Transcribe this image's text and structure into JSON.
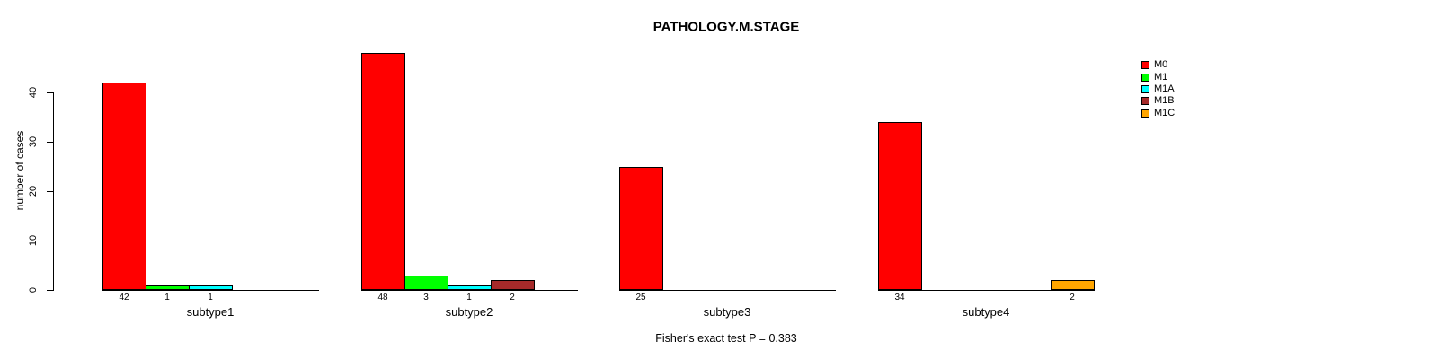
{
  "header": {
    "title": "PATHOLOGY.M.STAGE"
  },
  "footer": {
    "caption": "Fisher's exact test P = 0.383"
  },
  "chart_data": {
    "type": "bar",
    "title": "PATHOLOGY.M.STAGE",
    "xlabel": "",
    "ylabel": "number of cases",
    "ylim": [
      0,
      48
    ],
    "yticks": [
      0,
      10,
      20,
      30,
      40
    ],
    "grid": false,
    "legend_position": "right",
    "categories": [
      "subtype1",
      "subtype2",
      "subtype3",
      "subtype4"
    ],
    "series": [
      {
        "name": "M0",
        "color": "#FF0000",
        "values": [
          42,
          48,
          25,
          34
        ]
      },
      {
        "name": "M1",
        "color": "#00FF00",
        "values": [
          1,
          3,
          0,
          0
        ]
      },
      {
        "name": "M1A",
        "color": "#00FFFF",
        "values": [
          1,
          1,
          0,
          0
        ]
      },
      {
        "name": "M1B",
        "color": "#A52A2A",
        "values": [
          0,
          2,
          0,
          0
        ]
      },
      {
        "name": "M1C",
        "color": "#FFA500",
        "values": [
          0,
          0,
          0,
          2
        ]
      }
    ],
    "bar_value_labels_shown_for_nonzero": true,
    "annotation": "Fisher's exact test P = 0.383"
  }
}
